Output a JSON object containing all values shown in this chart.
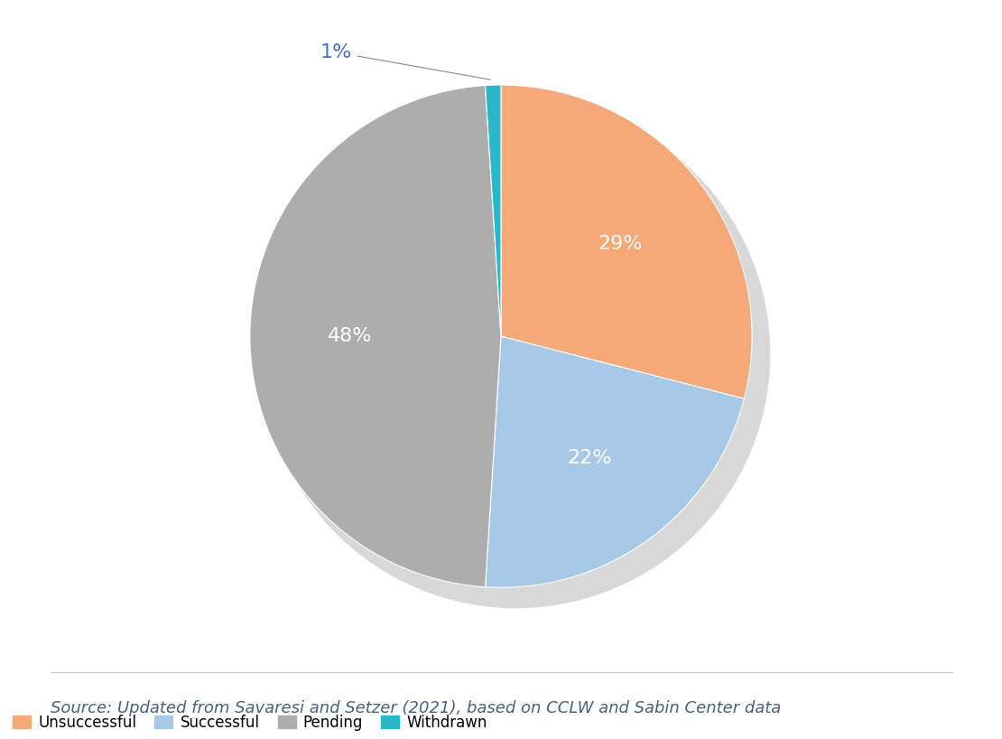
{
  "labels": [
    "Unsuccessful",
    "Successful",
    "Pending",
    "Withdrawn"
  ],
  "values": [
    29,
    22,
    48,
    1
  ],
  "colors": [
    "#F5A878",
    "#A8C8E8",
    "#ADADAD",
    "#29B8C8"
  ],
  "pct_labels": [
    "29%",
    "22%",
    "48%",
    "1%"
  ],
  "shadow_color": "#D8D8D8",
  "background_color": "#FFFFFF",
  "source_text": "Source: Updated from Savaresi and Setzer (2021), based on CCLW and Sabin Center data",
  "legend_labels": [
    "Unsuccessful",
    "Successful",
    "Pending",
    "Withdrawn"
  ],
  "startangle": 90,
  "label_fontsize": 16,
  "legend_fontsize": 12,
  "source_fontsize": 13
}
